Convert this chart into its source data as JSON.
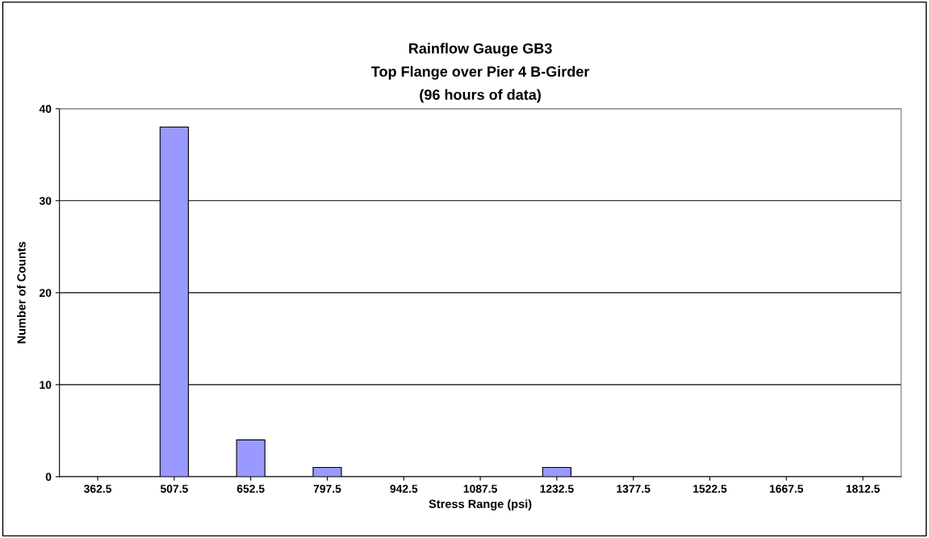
{
  "chart_data": {
    "type": "bar",
    "title": "Rainflow Gauge GB3\nTop Flange over Pier 4 B-Girder\n(96 hours of data)",
    "xlabel": "Stress Range (psi)",
    "ylabel": "Number of Counts",
    "categories": [
      "362.5",
      "507.5",
      "652.5",
      "797.5",
      "942.5",
      "1087.5",
      "1232.5",
      "1377.5",
      "1522.5",
      "1667.5",
      "1812.5"
    ],
    "values": [
      0,
      38,
      4,
      1,
      0,
      0,
      1,
      0,
      0,
      0,
      0
    ],
    "color": "#9999ff",
    "ylim": [
      0,
      40
    ],
    "yticks": [
      0,
      10,
      20,
      30,
      40
    ],
    "grid": "y",
    "legend": false
  }
}
